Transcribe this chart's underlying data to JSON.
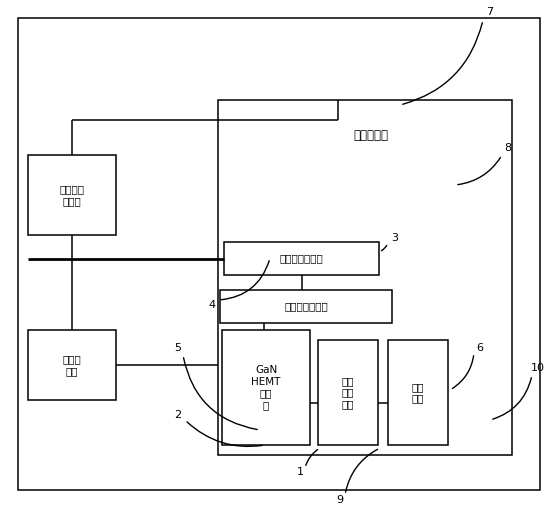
{
  "bg_color": "#ffffff",
  "line_color": "#000000",
  "pulse_cooler_label": "脉冲制冷器",
  "pulse_cooler_controller_label": "脉冲制冷\n控制器",
  "control_computer_label": "控制计\n算机",
  "squid_label": "超导量子干涉器",
  "edge_sensor_label": "跃迁边缘传感器",
  "gan_label": "GaN\nHEMT\n调制\n器",
  "lna_label": "低噪\n声放\n大器",
  "antenna_label": "喇叭\n天线"
}
